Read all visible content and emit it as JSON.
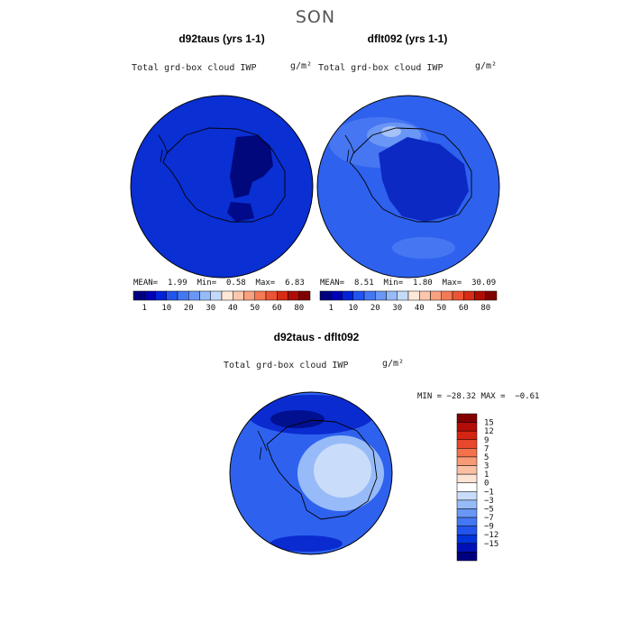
{
  "page": {
    "title": "SON"
  },
  "colors": {
    "scale": [
      "#00007f",
      "#0000b3",
      "#0022d8",
      "#2255ee",
      "#4477f2",
      "#6a97f5",
      "#97bbf8",
      "#c5daf9",
      "#fde8d8",
      "#fbc7ad",
      "#f9a07f",
      "#f47a55",
      "#ec5433",
      "#d62b14",
      "#b00c06",
      "#7f0000"
    ],
    "diff_scale": [
      "#00007f",
      "#0011b8",
      "#0033d9",
      "#2255ee",
      "#4477f2",
      "#6a97f5",
      "#97bbf8",
      "#c9dcf9",
      "#ffffff",
      "#fde3d3",
      "#fbc0a4",
      "#f89a76",
      "#f2724c",
      "#e8482b",
      "#d42512",
      "#b40c06",
      "#820000"
    ],
    "land_outline": "#000000"
  },
  "panels": {
    "left": {
      "title": "d92taus (yrs 1-1)",
      "variable": "Total grd-box cloud IWP",
      "units": "g/m²",
      "mean_label": "MEAN=",
      "mean": "1.99",
      "min_label": "Min=",
      "min": "0.58",
      "max_label": "Max=",
      "max": "6.83"
    },
    "right": {
      "title": "dflt092 (yrs 1-1)",
      "variable": "Total grd-box cloud IWP",
      "units": "g/m²",
      "mean_label": "MEAN=",
      "mean": "8.51",
      "min_label": "Min=",
      "min": "1.80",
      "max_label": "Max=",
      "max": "30.09"
    },
    "diff": {
      "title": "d92taus - dflt092",
      "variable": "Total grd-box cloud IWP",
      "units": "g/m²",
      "minmax_text": "MIN = −28.32 MAX =  −0.61"
    }
  },
  "chart_data": [
    {
      "type": "heatmap",
      "projection": "south polar stereographic",
      "title": "d92taus (yrs 1-1)",
      "variable": "Total grd-box cloud IWP",
      "units": "g/m^2",
      "stats": {
        "mean": 1.99,
        "min": 0.58,
        "max": 6.83
      },
      "colorbar_ticks": [
        "1",
        "10",
        "20",
        "30",
        "40",
        "50",
        "60",
        "80"
      ],
      "dominant_range": [
        1,
        10
      ]
    },
    {
      "type": "heatmap",
      "projection": "south polar stereographic",
      "title": "dflt092 (yrs 1-1)",
      "variable": "Total grd-box cloud IWP",
      "units": "g/m^2",
      "stats": {
        "mean": 8.51,
        "min": 1.8,
        "max": 30.09
      },
      "colorbar_ticks": [
        "1",
        "10",
        "20",
        "30",
        "40",
        "50",
        "60",
        "80"
      ],
      "dominant_range": [
        1,
        30
      ]
    },
    {
      "type": "heatmap",
      "projection": "south polar stereographic",
      "title": "d92taus - dflt092",
      "variable": "Total grd-box cloud IWP",
      "units": "g/m^2",
      "stats": {
        "min": -28.32,
        "max": -0.61
      },
      "colorbar_ticks": [
        "15",
        "12",
        "9",
        "7",
        "5",
        "3",
        "1",
        "0",
        "−1",
        "−3",
        "−5",
        "−7",
        "−9",
        "−12",
        "−15"
      ],
      "legend": "right"
    }
  ]
}
